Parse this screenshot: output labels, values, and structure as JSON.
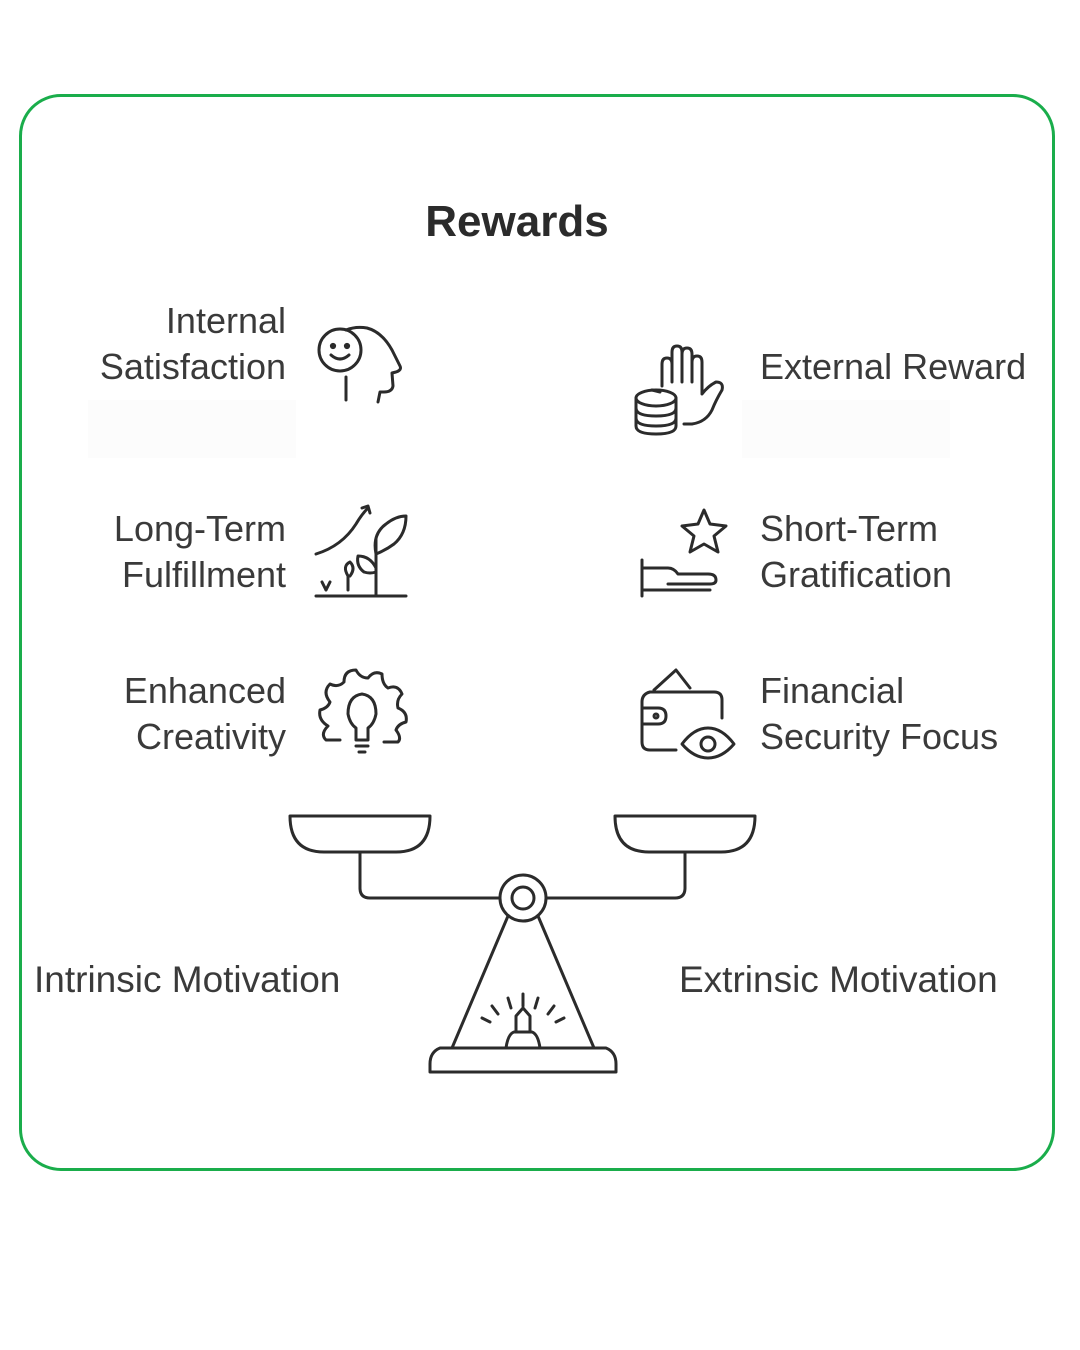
{
  "title": "Rewards",
  "intrinsic": {
    "heading": "Intrinsic Motivation",
    "items": [
      {
        "lines": [
          "Internal",
          "Satisfaction"
        ],
        "icon": "smiling-head-icon"
      },
      {
        "lines": [
          "Long-Term",
          "Fulfillment"
        ],
        "icon": "growing-plant-icon"
      },
      {
        "lines": [
          "Enhanced",
          "Creativity"
        ],
        "icon": "gear-lightbulb-icon"
      }
    ]
  },
  "extrinsic": {
    "heading": "Extrinsic Motivation",
    "items": [
      {
        "lines": [
          "External Reward"
        ],
        "icon": "hand-coins-icon"
      },
      {
        "lines": [
          "Short-Term",
          "Gratification"
        ],
        "icon": "hand-star-icon"
      },
      {
        "lines": [
          "Financial",
          "Security Focus"
        ],
        "icon": "wallet-eye-icon"
      }
    ]
  },
  "colors": {
    "frame_border": "#1aad4b",
    "text": "#3a3a3a",
    "stroke": "#2b2b2b"
  }
}
